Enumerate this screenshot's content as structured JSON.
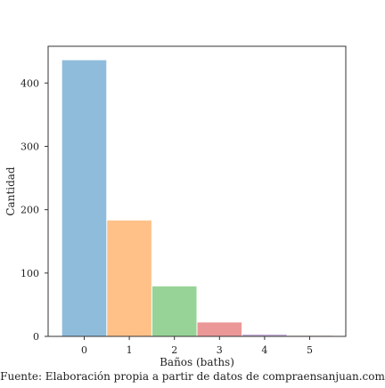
{
  "chart_data": {
    "type": "bar",
    "categories": [
      "0",
      "1",
      "2",
      "3",
      "4",
      "5"
    ],
    "values": [
      436,
      183,
      79,
      22,
      3,
      1
    ],
    "colors": [
      "#8fbcdb",
      "#ffc187",
      "#97d397",
      "#eb9797",
      "#c4afd8",
      "#c9a99d"
    ],
    "xlabel": "Baños (baths)",
    "ylabel": "Cantidad",
    "yticks": [
      0,
      100,
      200,
      300,
      400
    ],
    "ylim": [
      0,
      458
    ],
    "grid": false
  },
  "caption": "Fuente: Elaboración propia a partir de datos de compraensanjuan.com"
}
